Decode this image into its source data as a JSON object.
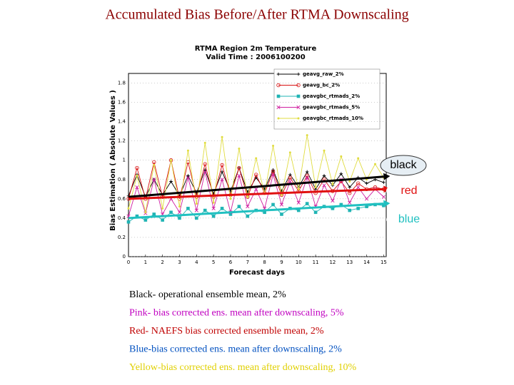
{
  "slide_title": "Accumulated Bias Before/After RTMA Downscaling",
  "chart_data": {
    "type": "line",
    "title": "RTMA Region 2m Temperature",
    "subtitle": "Valid Time : 2006100200",
    "x_label": "Forecast days",
    "y_label": "Bias Estimation ( Absolute Values )",
    "xlim": [
      0,
      15.15
    ],
    "ylim": [
      0,
      1.9
    ],
    "xticks": [
      0,
      1,
      2,
      3,
      4,
      5,
      6,
      7,
      8,
      9,
      10,
      11,
      12,
      13,
      14,
      15
    ],
    "yticks": [
      0,
      0.2,
      0.4,
      0.6,
      0.8,
      1,
      1.2,
      1.4,
      1.6,
      1.8
    ],
    "grid": true,
    "legend": "top-right",
    "x": [
      0,
      0.5,
      1,
      1.5,
      2,
      2.5,
      3,
      3.5,
      4,
      4.5,
      5,
      5.5,
      6,
      6.5,
      7,
      7.5,
      8,
      8.5,
      9,
      9.5,
      10,
      10.5,
      11,
      11.5,
      12,
      12.5,
      13,
      13.5,
      14,
      14.5,
      15
    ],
    "series": [
      {
        "name": "geavg_raw_2%",
        "color": "#000000",
        "marker": "plus",
        "values": [
          0.63,
          0.85,
          0.62,
          0.8,
          0.64,
          0.78,
          0.63,
          0.84,
          0.66,
          0.9,
          0.65,
          0.88,
          0.68,
          0.92,
          0.67,
          0.82,
          0.7,
          0.9,
          0.68,
          0.85,
          0.72,
          0.88,
          0.7,
          0.84,
          0.74,
          0.86,
          0.72,
          0.82,
          0.76,
          0.8,
          0.77
        ]
      },
      {
        "name": "geavg_bc_2%",
        "color": "#d81010",
        "marker": "circle",
        "values": [
          0.6,
          0.92,
          0.6,
          0.98,
          0.62,
          1.0,
          0.6,
          0.98,
          0.62,
          0.96,
          0.62,
          0.95,
          0.64,
          0.92,
          0.62,
          0.85,
          0.66,
          0.88,
          0.64,
          0.82,
          0.68,
          0.84,
          0.66,
          0.8,
          0.68,
          0.78,
          0.66,
          0.76,
          0.7,
          0.72,
          0.7
        ]
      },
      {
        "name": "geavgbc_rtmads_2%",
        "color": "#20b4b4",
        "marker": "square",
        "values": [
          0.36,
          0.42,
          0.38,
          0.44,
          0.38,
          0.46,
          0.4,
          0.5,
          0.4,
          0.48,
          0.42,
          0.5,
          0.44,
          0.52,
          0.42,
          0.48,
          0.46,
          0.54,
          0.44,
          0.5,
          0.48,
          0.55,
          0.46,
          0.52,
          0.5,
          0.54,
          0.48,
          0.5,
          0.52,
          0.54,
          0.53
        ]
      },
      {
        "name": "geavgbc_rtmads_5%",
        "color": "#d020a0",
        "marker": "cross",
        "values": [
          0.42,
          0.72,
          0.45,
          0.8,
          0.44,
          0.6,
          0.46,
          0.82,
          0.48,
          0.88,
          0.5,
          0.8,
          0.46,
          0.84,
          0.52,
          0.7,
          0.5,
          0.85,
          0.54,
          0.78,
          0.56,
          0.82,
          0.52,
          0.74,
          0.58,
          0.8,
          0.56,
          0.72,
          0.6,
          0.7,
          0.62
        ]
      },
      {
        "name": "geavgbc_rtmads_10%",
        "color": "#e0dc40",
        "marker": "dot",
        "values": [
          0.5,
          0.84,
          0.46,
          0.95,
          0.5,
          1.0,
          0.52,
          1.1,
          0.55,
          1.18,
          0.56,
          1.24,
          0.6,
          1.12,
          0.62,
          1.02,
          0.65,
          1.15,
          0.64,
          1.08,
          0.7,
          1.26,
          0.72,
          1.1,
          0.75,
          1.04,
          0.78,
          1.02,
          0.8,
          0.96,
          0.82
        ]
      }
    ],
    "trend_lines": [
      {
        "label": "black",
        "color": "#000000",
        "x": [
          0,
          15
        ],
        "y": [
          0.62,
          0.83
        ]
      },
      {
        "label": "red",
        "color": "#e01010",
        "x": [
          0,
          15
        ],
        "y": [
          0.6,
          0.7
        ]
      },
      {
        "label": "blue",
        "color": "#20c0c0",
        "x": [
          0,
          15
        ],
        "y": [
          0.4,
          0.55
        ]
      }
    ]
  },
  "captions": [
    {
      "text": "Black- operational ensemble mean, 2%",
      "color": "#000000"
    },
    {
      "text": "Pink- bias corrected ens. mean after downscaling, 5%",
      "color": "#c000c0"
    },
    {
      "text": "Red- NAEFS bias corrected ensemble mean, 2%",
      "color": "#c00000"
    },
    {
      "text": "Blue-bias corrected ens. mean after downscaling, 2%",
      "color": "#0050c0"
    },
    {
      "text": "Yellow-bias corrected ens. mean after downscaling, 10%",
      "color": "#e0d000"
    }
  ]
}
